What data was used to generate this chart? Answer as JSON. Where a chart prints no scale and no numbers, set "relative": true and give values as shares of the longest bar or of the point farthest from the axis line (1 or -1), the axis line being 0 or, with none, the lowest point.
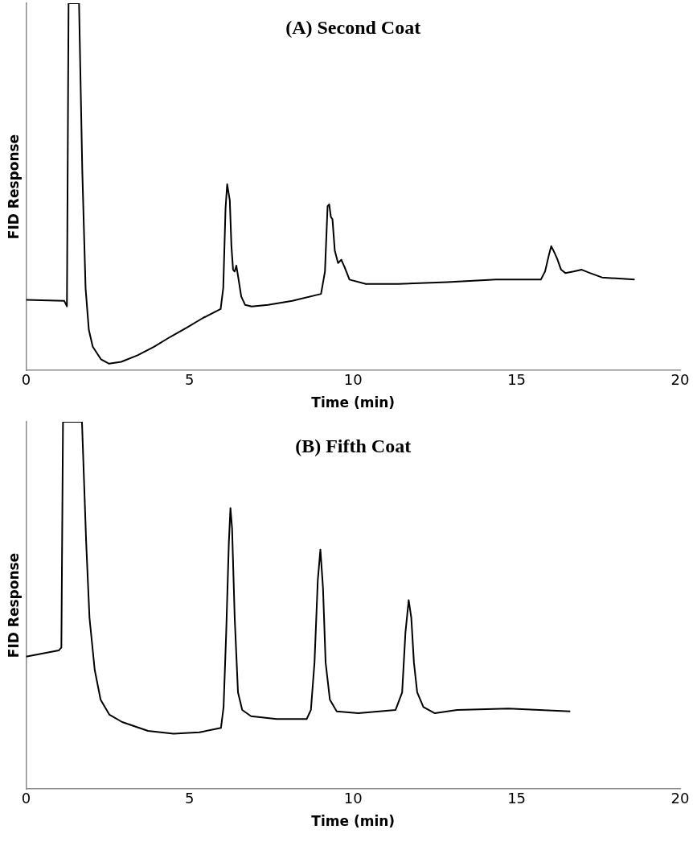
{
  "chart_data": [
    {
      "type": "line",
      "title": "(A) Second Coat",
      "xlabel": "Time (min)",
      "ylabel": "FID Response",
      "relative": true,
      "xlim": [
        0,
        20
      ],
      "xticks": [
        0,
        5,
        10,
        15,
        20
      ],
      "grid": false,
      "legend": false,
      "marker": "none",
      "line_style": "solid",
      "series": [
        {
          "color": "#000000",
          "x": [
            0,
            1.17,
            1.25,
            1.3,
            1.62,
            1.72,
            1.82,
            1.92,
            2.04,
            2.29,
            2.54,
            2.91,
            3.41,
            3.91,
            4.41,
            4.91,
            5.4,
            5.95,
            6.03,
            6.1,
            6.15,
            6.23,
            6.28,
            6.33,
            6.38,
            6.43,
            6.48,
            6.58,
            6.7,
            6.9,
            7.4,
            8.14,
            9.02,
            9.14,
            9.22,
            9.27,
            9.32,
            9.37,
            9.44,
            9.54,
            9.64,
            9.74,
            9.89,
            10.39,
            11.38,
            12.88,
            14.37,
            15.74,
            15.87,
            15.99,
            16.06,
            16.16,
            16.24,
            16.36,
            16.49,
            16.74,
            16.99,
            17.24,
            17.61,
            18.61
          ],
          "values": [
            0.192,
            0.189,
            0.174,
            1,
            1,
            0.543,
            0.224,
            0.11,
            0.064,
            0.03,
            0.018,
            0.023,
            0.041,
            0.064,
            0.091,
            0.116,
            0.142,
            0.167,
            0.224,
            0.441,
            0.507,
            0.463,
            0.338,
            0.274,
            0.269,
            0.285,
            0.258,
            0.201,
            0.178,
            0.174,
            0.178,
            0.189,
            0.208,
            0.269,
            0.447,
            0.452,
            0.418,
            0.411,
            0.326,
            0.292,
            0.301,
            0.281,
            0.247,
            0.235,
            0.235,
            0.24,
            0.247,
            0.247,
            0.269,
            0.315,
            0.338,
            0.32,
            0.304,
            0.274,
            0.265,
            0.269,
            0.274,
            0.265,
            0.253,
            0.247
          ]
        }
      ]
    },
    {
      "type": "line",
      "title": "(B) Fifth Coat",
      "xlabel": "Time (min)",
      "ylabel": "FID Response",
      "relative": true,
      "xlim": [
        0,
        20
      ],
      "xticks": [
        0,
        5,
        10,
        15,
        20
      ],
      "grid": false,
      "legend": false,
      "marker": "none",
      "line_style": "solid",
      "series": [
        {
          "color": "#000000",
          "x": [
            0,
            1,
            1.08,
            1.13,
            1.71,
            1.84,
            1.94,
            2.1,
            2.28,
            2.55,
            2.94,
            3.73,
            4.51,
            5.3,
            5.96,
            6.04,
            6.12,
            6.2,
            6.25,
            6.3,
            6.38,
            6.48,
            6.61,
            6.88,
            7.66,
            8.58,
            8.71,
            8.82,
            8.92,
            9,
            9.08,
            9.16,
            9.29,
            9.5,
            10.16,
            11.3,
            11.5,
            11.6,
            11.7,
            11.78,
            11.86,
            11.96,
            12.15,
            12.5,
            13.18,
            14.75,
            16.64
          ],
          "values": [
            0.36,
            0.377,
            0.385,
            1,
            1,
            0.668,
            0.466,
            0.324,
            0.243,
            0.202,
            0.182,
            0.158,
            0.15,
            0.154,
            0.166,
            0.223,
            0.425,
            0.668,
            0.765,
            0.709,
            0.466,
            0.263,
            0.215,
            0.198,
            0.19,
            0.19,
            0.215,
            0.344,
            0.567,
            0.652,
            0.547,
            0.344,
            0.243,
            0.211,
            0.206,
            0.215,
            0.263,
            0.425,
            0.514,
            0.466,
            0.344,
            0.263,
            0.223,
            0.206,
            0.215,
            0.219,
            0.211
          ]
        }
      ]
    }
  ]
}
